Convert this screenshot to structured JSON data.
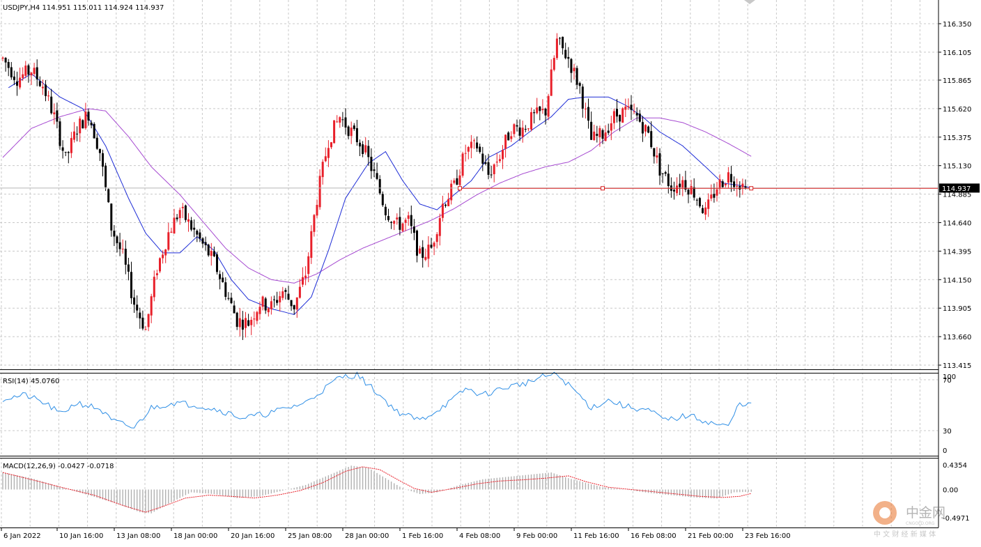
{
  "colors": {
    "bull": "#e8202a",
    "bear": "#000000",
    "ma_fast": "#1c2bd6",
    "ma_slow": "#a64ad1",
    "hline": "#d61c1c",
    "rsi": "#2f8fe6",
    "macd_signal": "#e8202a",
    "macd_hist": "#b0b0b0",
    "grid": "#c8c8c8",
    "price_box_bg": "#000000",
    "price_box_fg": "#ffffff"
  },
  "main": {
    "title": "USDJPY,H4  114.951 115.011 114.924 114.937",
    "ylim": [
      113.38,
      116.45
    ],
    "y_ticks": [
      "116.350",
      "116.105",
      "115.865",
      "115.620",
      "115.375",
      "115.130",
      "114.885",
      "114.640",
      "114.395",
      "114.150",
      "113.905",
      "113.660",
      "113.415"
    ],
    "current_price": "114.937",
    "current_price_value": 114.937,
    "hline_value": 114.935
  },
  "rsi": {
    "title": "RSI(14) 45.0760",
    "ylim": [
      0,
      100
    ],
    "levels": [
      "100",
      "70",
      "30",
      "0"
    ]
  },
  "macd": {
    "title": "MACD(12,26,9) -0.0427 -0.0718",
    "ylim": [
      -0.4971,
      0.4354
    ],
    "levels": [
      "0.4354",
      "0.00",
      "-0.4971"
    ]
  },
  "x_labels": [
    "6 Jan 2022",
    "10 Jan 16:00",
    "13 Jan 08:00",
    "18 Jan 00:00",
    "20 Jan 16:00",
    "25 Jan 08:00",
    "28 Jan 00:00",
    "1 Feb 16:00",
    "4 Feb 08:00",
    "9 Feb 00:00",
    "11 Feb 16:00",
    "16 Feb 08:00",
    "21 Feb 00:00",
    "23 Feb 16:00"
  ],
  "watermark": {
    "brand": "中金网",
    "sub": "CNGOLD.ORG",
    "tagline": "中 文 财 经 新 媒 体"
  },
  "chart_data": {
    "type": "candlestick",
    "symbol": "USDJPY",
    "timeframe": "H4",
    "ohlc_last": {
      "open": 114.951,
      "high": 115.011,
      "low": 114.924,
      "close": 114.937
    },
    "anchors": [
      [
        0,
        116.05
      ],
      [
        5,
        115.88
      ],
      [
        10,
        115.95
      ],
      [
        14,
        115.82
      ],
      [
        18,
        115.55
      ],
      [
        22,
        115.18
      ],
      [
        26,
        115.45
      ],
      [
        30,
        115.58
      ],
      [
        34,
        115.25
      ],
      [
        38,
        114.6
      ],
      [
        42,
        114.35
      ],
      [
        46,
        113.95
      ],
      [
        50,
        113.72
      ],
      [
        54,
        114.25
      ],
      [
        58,
        114.55
      ],
      [
        62,
        114.75
      ],
      [
        66,
        114.6
      ],
      [
        70,
        114.45
      ],
      [
        74,
        114.3
      ],
      [
        78,
        114.05
      ],
      [
        82,
        113.8
      ],
      [
        86,
        113.78
      ],
      [
        90,
        113.95
      ],
      [
        94,
        113.92
      ],
      [
        98,
        114.05
      ],
      [
        102,
        113.92
      ],
      [
        106,
        114.2
      ],
      [
        110,
        114.85
      ],
      [
        114,
        115.35
      ],
      [
        118,
        115.55
      ],
      [
        122,
        115.42
      ],
      [
        126,
        115.3
      ],
      [
        130,
        115.05
      ],
      [
        134,
        114.75
      ],
      [
        138,
        114.62
      ],
      [
        142,
        114.65
      ],
      [
        146,
        114.35
      ],
      [
        150,
        114.42
      ],
      [
        154,
        114.8
      ],
      [
        158,
        114.95
      ],
      [
        162,
        115.25
      ],
      [
        166,
        115.3
      ],
      [
        170,
        115.05
      ],
      [
        174,
        115.22
      ],
      [
        178,
        115.45
      ],
      [
        182,
        115.45
      ],
      [
        186,
        115.55
      ],
      [
        190,
        115.6
      ],
      [
        194,
        116.2
      ],
      [
        198,
        116.05
      ],
      [
        202,
        115.8
      ],
      [
        206,
        115.35
      ],
      [
        210,
        115.4
      ],
      [
        214,
        115.55
      ],
      [
        218,
        115.6
      ],
      [
        222,
        115.55
      ],
      [
        226,
        115.4
      ],
      [
        230,
        115.1
      ],
      [
        234,
        114.95
      ],
      [
        238,
        115.0
      ],
      [
        242,
        114.9
      ],
      [
        246,
        114.72
      ],
      [
        250,
        114.95
      ],
      [
        254,
        115.05
      ],
      [
        258,
        114.98
      ],
      [
        260,
        114.937
      ]
    ],
    "ma_fast_anchors": [
      [
        2,
        115.8
      ],
      [
        10,
        115.92
      ],
      [
        20,
        115.72
      ],
      [
        28,
        115.62
      ],
      [
        36,
        115.3
      ],
      [
        44,
        114.85
      ],
      [
        50,
        114.55
      ],
      [
        56,
        114.38
      ],
      [
        62,
        114.38
      ],
      [
        68,
        114.52
      ],
      [
        74,
        114.4
      ],
      [
        80,
        114.15
      ],
      [
        86,
        113.98
      ],
      [
        94,
        113.9
      ],
      [
        102,
        113.85
      ],
      [
        108,
        114.0
      ],
      [
        114,
        114.4
      ],
      [
        120,
        114.85
      ],
      [
        128,
        115.15
      ],
      [
        134,
        115.25
      ],
      [
        140,
        115.0
      ],
      [
        146,
        114.8
      ],
      [
        152,
        114.75
      ],
      [
        158,
        114.88
      ],
      [
        164,
        115.0
      ],
      [
        170,
        115.2
      ],
      [
        178,
        115.3
      ],
      [
        186,
        115.45
      ],
      [
        192,
        115.55
      ],
      [
        198,
        115.7
      ],
      [
        204,
        115.72
      ],
      [
        212,
        115.72
      ],
      [
        218,
        115.65
      ],
      [
        224,
        115.55
      ],
      [
        230,
        115.42
      ],
      [
        238,
        115.3
      ],
      [
        246,
        115.12
      ],
      [
        252,
        114.98
      ],
      [
        258,
        114.96
      ],
      [
        262,
        114.94
      ]
    ],
    "ma_slow_anchors": [
      [
        0,
        115.2
      ],
      [
        10,
        115.45
      ],
      [
        20,
        115.55
      ],
      [
        30,
        115.62
      ],
      [
        36,
        115.6
      ],
      [
        44,
        115.38
      ],
      [
        52,
        115.12
      ],
      [
        62,
        114.88
      ],
      [
        70,
        114.65
      ],
      [
        78,
        114.42
      ],
      [
        86,
        114.25
      ],
      [
        94,
        114.15
      ],
      [
        102,
        114.12
      ],
      [
        110,
        114.2
      ],
      [
        118,
        114.32
      ],
      [
        126,
        114.42
      ],
      [
        134,
        114.5
      ],
      [
        142,
        114.58
      ],
      [
        150,
        114.66
      ],
      [
        158,
        114.76
      ],
      [
        166,
        114.88
      ],
      [
        174,
        114.98
      ],
      [
        182,
        115.06
      ],
      [
        190,
        115.12
      ],
      [
        198,
        115.16
      ],
      [
        206,
        115.26
      ],
      [
        214,
        115.42
      ],
      [
        222,
        115.54
      ],
      [
        230,
        115.54
      ],
      [
        238,
        115.5
      ],
      [
        246,
        115.42
      ],
      [
        254,
        115.32
      ],
      [
        262,
        115.21
      ]
    ],
    "rsi_anchors": [
      [
        0,
        55
      ],
      [
        8,
        58
      ],
      [
        16,
        50
      ],
      [
        20,
        43
      ],
      [
        26,
        52
      ],
      [
        34,
        47
      ],
      [
        38,
        38
      ],
      [
        46,
        32
      ],
      [
        52,
        48
      ],
      [
        60,
        52
      ],
      [
        68,
        50
      ],
      [
        76,
        46
      ],
      [
        84,
        40
      ],
      [
        92,
        43
      ],
      [
        100,
        48
      ],
      [
        106,
        52
      ],
      [
        112,
        62
      ],
      [
        118,
        72
      ],
      [
        124,
        74
      ],
      [
        130,
        62
      ],
      [
        138,
        45
      ],
      [
        146,
        38
      ],
      [
        152,
        46
      ],
      [
        158,
        55
      ],
      [
        162,
        63
      ],
      [
        168,
        58
      ],
      [
        176,
        64
      ],
      [
        184,
        68
      ],
      [
        190,
        73
      ],
      [
        194,
        74
      ],
      [
        200,
        62
      ],
      [
        206,
        48
      ],
      [
        212,
        54
      ],
      [
        218,
        49
      ],
      [
        226,
        46
      ],
      [
        232,
        38
      ],
      [
        240,
        42
      ],
      [
        248,
        36
      ],
      [
        254,
        33
      ],
      [
        258,
        52
      ],
      [
        262,
        50
      ],
      [
        266,
        47
      ]
    ],
    "macd_hist_anchors": [
      [
        0,
        0.3
      ],
      [
        10,
        0.2
      ],
      [
        20,
        0.05
      ],
      [
        30,
        -0.1
      ],
      [
        40,
        -0.25
      ],
      [
        48,
        -0.4
      ],
      [
        52,
        -0.42
      ],
      [
        58,
        -0.25
      ],
      [
        66,
        -0.05
      ],
      [
        74,
        -0.08
      ],
      [
        82,
        -0.15
      ],
      [
        90,
        -0.12
      ],
      [
        98,
        -0.02
      ],
      [
        106,
        0.08
      ],
      [
        114,
        0.25
      ],
      [
        122,
        0.42
      ],
      [
        128,
        0.38
      ],
      [
        134,
        0.2
      ],
      [
        140,
        0.02
      ],
      [
        146,
        -0.08
      ],
      [
        152,
        -0.05
      ],
      [
        160,
        0.08
      ],
      [
        168,
        0.18
      ],
      [
        176,
        0.22
      ],
      [
        184,
        0.26
      ],
      [
        192,
        0.3
      ],
      [
        198,
        0.2
      ],
      [
        204,
        0.12
      ],
      [
        210,
        0.04
      ],
      [
        218,
        0.0
      ],
      [
        226,
        -0.06
      ],
      [
        234,
        -0.1
      ],
      [
        242,
        -0.14
      ],
      [
        250,
        -0.16
      ],
      [
        256,
        -0.05
      ],
      [
        262,
        -0.04
      ]
    ],
    "macd_signal_anchors": [
      [
        0,
        0.3
      ],
      [
        12,
        0.15
      ],
      [
        22,
        0.02
      ],
      [
        32,
        -0.1
      ],
      [
        42,
        -0.28
      ],
      [
        50,
        -0.4
      ],
      [
        56,
        -0.3
      ],
      [
        64,
        -0.15
      ],
      [
        72,
        -0.1
      ],
      [
        80,
        -0.12
      ],
      [
        88,
        -0.15
      ],
      [
        96,
        -0.1
      ],
      [
        104,
        -0.02
      ],
      [
        112,
        0.12
      ],
      [
        120,
        0.32
      ],
      [
        126,
        0.4
      ],
      [
        132,
        0.35
      ],
      [
        138,
        0.18
      ],
      [
        144,
        0.02
      ],
      [
        150,
        -0.05
      ],
      [
        158,
        0.02
      ],
      [
        166,
        0.1
      ],
      [
        174,
        0.15
      ],
      [
        182,
        0.17
      ],
      [
        190,
        0.2
      ],
      [
        198,
        0.24
      ],
      [
        204,
        0.14
      ],
      [
        212,
        0.04
      ],
      [
        220,
        0.0
      ],
      [
        228,
        -0.04
      ],
      [
        236,
        -0.08
      ],
      [
        244,
        -0.12
      ],
      [
        252,
        -0.14
      ],
      [
        258,
        -0.12
      ],
      [
        262,
        -0.07
      ]
    ]
  }
}
